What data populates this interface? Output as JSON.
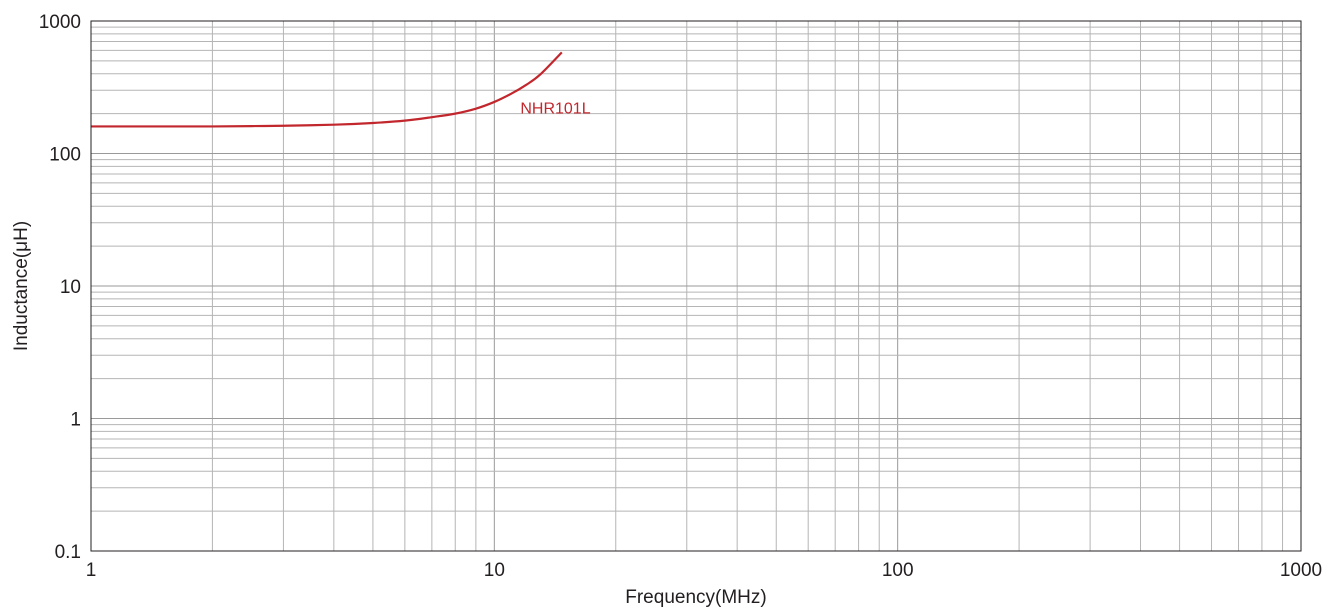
{
  "chart_data": {
    "type": "line",
    "title": "",
    "xlabel": "Frequency(MHz)",
    "ylabel": "Inductance(μH)",
    "x_scale": "log",
    "y_scale": "log",
    "xlim": [
      1,
      1000
    ],
    "ylim": [
      0.1,
      1000
    ],
    "x_ticks": [
      1,
      10,
      100,
      1000
    ],
    "x_tick_labels": [
      "1",
      "10",
      "100",
      "1000"
    ],
    "y_ticks": [
      0.1,
      1,
      10,
      100,
      1000
    ],
    "y_tick_labels": [
      "0.1",
      "1",
      "10",
      "100",
      "1000"
    ],
    "grid": true,
    "legend": "none",
    "series": [
      {
        "name": "NHR101L",
        "color": "#c1272d",
        "x": [
          1,
          1.5,
          2,
          2.5,
          3,
          4,
          5,
          6,
          7,
          8,
          9,
          10,
          11,
          12,
          13,
          14.7
        ],
        "y": [
          160,
          160,
          160,
          161,
          162,
          165,
          170,
          177,
          188,
          200,
          218,
          245,
          282,
          330,
          395,
          580
        ]
      }
    ]
  }
}
